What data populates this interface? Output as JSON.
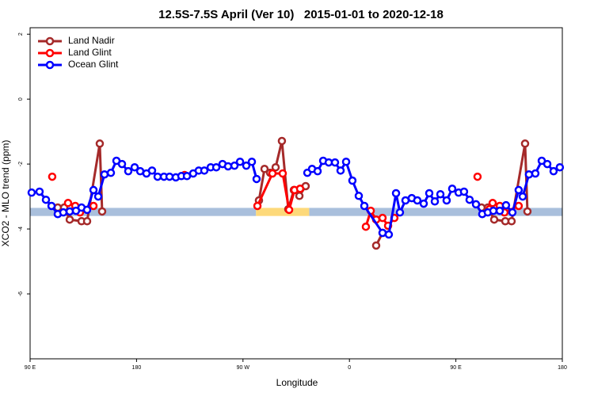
{
  "chart_data": {
    "type": "line",
    "title": "12.5S-7.5S April (Ver 10)   2015-01-01 to 2020-12-18",
    "x_label": "Longitude",
    "y_label": "XCO2 - MLO trend (ppm)",
    "xlim": [
      90,
      540
    ],
    "xticks": [
      {
        "value": 90,
        "label": "90 E"
      },
      {
        "value": 180,
        "label": "180"
      },
      {
        "value": 270,
        "label": "90 W"
      },
      {
        "value": 360,
        "label": "0"
      },
      {
        "value": 450,
        "label": "90 E"
      },
      {
        "value": 540,
        "label": "180"
      }
    ],
    "ylim": [
      -8,
      2.2
    ],
    "yticks": [
      -6,
      -4,
      -2,
      0,
      2
    ],
    "grid": false,
    "legend": "top-left",
    "band": {
      "y": [
        -3.6,
        -3.35
      ],
      "segments": [
        {
          "from": 90,
          "to": 281,
          "color": "#a9bfdc"
        },
        {
          "from": 281,
          "to": 326,
          "color": "#fdd97a"
        },
        {
          "from": 326,
          "to": 540,
          "color": "#a9bfdc"
        }
      ]
    },
    "series": [
      {
        "name": "Land Nadir",
        "color": "#a52a2a",
        "x": [
          113.4,
          118.8,
          123.5,
          133.5,
          138.2,
          148.9,
          150.9,
          null,
          283.5,
          288.2,
          292.9,
          297.6,
          302.9,
          308.3,
          313.0,
          317.7,
          323.0,
          null,
          382.6,
          388.0,
          null,
          471.7,
          477.0,
          482.4,
          491.8,
          497.1,
          508.5,
          510.5
        ],
        "values": [
          -3.34,
          -3.34,
          -3.71,
          -3.76,
          -3.76,
          -1.37,
          -3.46,
          null,
          -3.12,
          -2.15,
          -2.27,
          -2.1,
          -1.29,
          -3.39,
          -2.8,
          -2.98,
          -2.68,
          null,
          -4.51,
          -4.12,
          null,
          -3.34,
          -3.34,
          -3.71,
          -3.76,
          -3.76,
          -1.37,
          -3.46
        ]
      },
      {
        "name": "Land Glint",
        "color": "#ff0000",
        "x": [
          108.7,
          null,
          122.1,
          128.2,
          132.2,
          143.6,
          null,
          220.6,
          null,
          282.2,
          294.9,
          303.6,
          309.0,
          313.6,
          318.3,
          null,
          373.9,
          378.0,
          382.6,
          388.0,
          392.7,
          398.0,
          null,
          468.3,
          null,
          478.4,
          481.1,
          487.1,
          491.1,
          503.1
        ],
        "values": [
          -2.39,
          null,
          -3.2,
          -3.29,
          -3.49,
          -3.29,
          null,
          -2.34,
          null,
          -3.29,
          -2.29,
          -2.29,
          -3.41,
          -2.8,
          -2.76,
          null,
          -3.93,
          -3.44,
          -3.71,
          -3.66,
          -3.9,
          -3.66,
          null,
          -2.39,
          null,
          -3.39,
          -3.2,
          -3.29,
          -3.49,
          -3.29
        ]
      },
      {
        "name": "Ocean Glint",
        "color": "#0000ff",
        "x": [
          91.3,
          98.0,
          103.4,
          108.1,
          113.4,
          118.1,
          123.5,
          128.8,
          133.5,
          138.2,
          143.6,
          147.6,
          152.9,
          158.3,
          163.0,
          167.7,
          173.0,
          178.4,
          183.1,
          188.4,
          193.1,
          197.8,
          203.2,
          207.9,
          213.2,
          217.9,
          222.6,
          227.9,
          232.6,
          237.3,
          242.7,
          247.4,
          252.7,
          257.4,
          262.8,
          267.5,
          272.8,
          277.5,
          281.5,
          null,
          324.4,
          328.4,
          333.1,
          337.8,
          342.5,
          347.8,
          352.5,
          357.2,
          362.5,
          367.9,
          372.6,
          388.0,
          393.3,
          399.4,
          402.7,
          407.4,
          412.7,
          417.4,
          422.8,
          427.5,
          432.2,
          436.9,
          442.2,
          446.9,
          452.3,
          456.9,
          461.6,
          467.0,
          472.3,
          477.0,
          481.7,
          487.1,
          492.4,
          497.8,
          503.1,
          506.5,
          511.8,
          517.2,
          522.6,
          527.3,
          532.6,
          537.9
        ],
        "values": [
          -2.88,
          -2.85,
          -3.1,
          -3.29,
          -3.54,
          -3.49,
          -3.46,
          -3.44,
          -3.34,
          -3.41,
          -2.8,
          -3.0,
          -2.32,
          -2.27,
          -1.9,
          -2.0,
          -2.22,
          -2.1,
          -2.22,
          -2.29,
          -2.2,
          -2.39,
          -2.39,
          -2.39,
          -2.41,
          -2.37,
          -2.37,
          -2.29,
          -2.2,
          -2.2,
          -2.1,
          -2.1,
          -2.0,
          -2.07,
          -2.05,
          -1.93,
          -2.05,
          -1.93,
          -2.46,
          null,
          -2.27,
          -2.15,
          -2.22,
          -1.9,
          -1.95,
          -1.95,
          -2.2,
          -1.93,
          -2.51,
          -2.98,
          -3.29,
          -4.12,
          -4.17,
          -2.9,
          -3.49,
          -3.12,
          -3.05,
          -3.12,
          -3.22,
          -2.9,
          -3.15,
          -2.93,
          -3.12,
          -2.76,
          -2.88,
          -2.85,
          -3.1,
          -3.24,
          -3.54,
          -3.49,
          -3.44,
          -3.44,
          -3.27,
          -3.49,
          -2.8,
          -3.0,
          -2.32,
          -2.29,
          -1.9,
          -2.0,
          -2.22,
          -2.1
        ]
      }
    ]
  }
}
